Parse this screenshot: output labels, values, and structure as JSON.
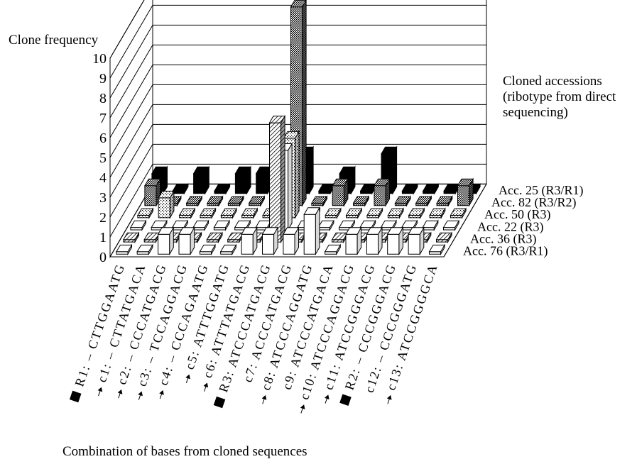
{
  "chart_data": {
    "type": "bar",
    "title": "",
    "ylabel": "Clone frequency",
    "xlabel": "Combination of bases from cloned sequences",
    "legend_title": [
      "Cloned accessions",
      "(ribotype from direct",
      "sequencing)"
    ],
    "ylim": [
      0,
      10
    ],
    "y_ticks": [
      "0",
      "1",
      "2",
      "3",
      "4",
      "5",
      "6",
      "7",
      "8",
      "9",
      "10"
    ],
    "grid": true,
    "categories": [
      {
        "label": "R1: – CTTGGAATG",
        "marker": "square"
      },
      {
        "label": "c1: – CTTATGACA",
        "marker": "arrow"
      },
      {
        "label": "c2: – CCCATGACG",
        "marker": "arrow"
      },
      {
        "label": "c3: – TCCAGGACG",
        "marker": "arrow"
      },
      {
        "label": "c4: – CCCAGAATG",
        "marker": "arrow"
      },
      {
        "label": "c5: ATTTGGATG",
        "marker": "arrow"
      },
      {
        "label": "c6: ATTTATGACG",
        "marker": "arrow"
      },
      {
        "label": "R3: ATCCCATGACG",
        "marker": "square"
      },
      {
        "label": "c7: ACCCATGACG",
        "marker": "none"
      },
      {
        "label": "c8: ATCCCAGGATG",
        "marker": "arrow"
      },
      {
        "label": "c9: ATCCCATGACA",
        "marker": "none"
      },
      {
        "label": "c10: ATCCCAGGACG",
        "marker": "arrow"
      },
      {
        "label": "c11: ATCCGGGACG",
        "marker": "arrow"
      },
      {
        "label": "R2: – CCCGGGACG",
        "marker": "square"
      },
      {
        "label": "c12: – CCCGGGATG",
        "marker": "none"
      },
      {
        "label": "c13: ATCCGGGGCA",
        "marker": "arrow"
      }
    ],
    "series": [
      {
        "name": "Acc. 25 (R3/R1)",
        "pattern": "solid-black",
        "values": [
          1,
          0,
          1,
          0,
          1,
          1,
          0,
          2,
          0,
          1,
          0,
          2,
          0,
          0,
          0,
          0
        ]
      },
      {
        "name": "Acc. 82 (R3/R2)",
        "pattern": "dots",
        "values": [
          1,
          0,
          0,
          0,
          0,
          0,
          0,
          10,
          0,
          1,
          0,
          1,
          0,
          0,
          0,
          1
        ]
      },
      {
        "name": "Acc. 50 (R3)",
        "pattern": "light-dots",
        "values": [
          0,
          1,
          0,
          0,
          0,
          0,
          0,
          4,
          0,
          0,
          0,
          0,
          0,
          0,
          0,
          0
        ]
      },
      {
        "name": "Acc. 22 (R3)",
        "pattern": "white",
        "values": [
          0,
          0,
          0,
          0,
          0,
          0,
          0,
          4,
          0,
          0,
          0,
          0,
          0,
          0,
          0,
          0
        ]
      },
      {
        "name": "Acc. 36 (R3)",
        "pattern": "hatch",
        "values": [
          0,
          0,
          0,
          0,
          0,
          0,
          0,
          6,
          0,
          0,
          0,
          0,
          0,
          0,
          0,
          0
        ]
      },
      {
        "name": "Acc. 76 (R3/R1)",
        "pattern": "white",
        "values": [
          0,
          0,
          1,
          1,
          0,
          0,
          1,
          1,
          1,
          2,
          0,
          1,
          1,
          1,
          1,
          0
        ]
      }
    ]
  }
}
